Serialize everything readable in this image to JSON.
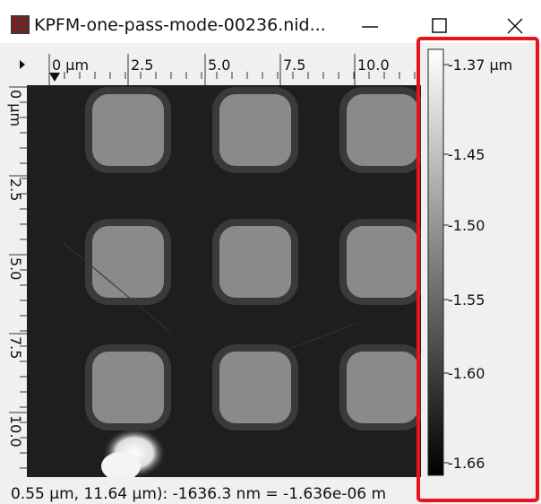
{
  "window": {
    "title": "KPFM-one-pass-mode-00236.nid..."
  },
  "ruler_top": {
    "labels": [
      "0 µm",
      "2.5",
      "5.0",
      "7.5",
      "10.0"
    ]
  },
  "ruler_left": {
    "labels": [
      "0 µm",
      "2.5",
      "5.0",
      "7.5",
      "10.0"
    ]
  },
  "color_bar": {
    "labels": [
      "-1.37 µm",
      "-1.45",
      "-1.50",
      "-1.55",
      "-1.60",
      "-1.66"
    ]
  },
  "status_bar": "0.55 µm, 11.64 µm): -1636.3 nm = -1.636e-06 m"
}
